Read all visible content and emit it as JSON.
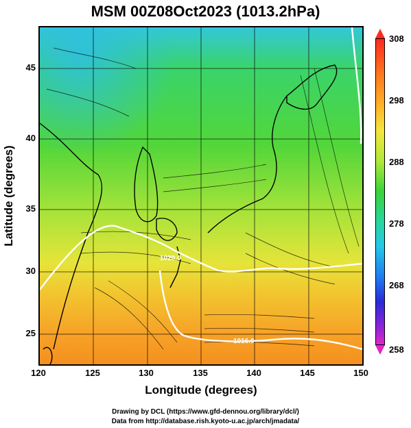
{
  "title": "MSM 00Z08Oct2023 (1013.2hPa)",
  "axes": {
    "xlabel": "Longitude (degrees)",
    "ylabel": "Latitude  (degrees)",
    "xticks": [
      "120",
      "125",
      "130",
      "135",
      "140",
      "145",
      "150"
    ],
    "yticks": [
      "45",
      "40",
      "35",
      "30",
      "25"
    ]
  },
  "colorbar": {
    "ticks": [
      "308",
      "298",
      "288",
      "278",
      "268",
      "258"
    ]
  },
  "contour_labels": [
    "1020.0",
    "1016.0"
  ],
  "credits": {
    "line1": "Drawing by DCL (https://www.gfd-dennou.org/library/dcl/)",
    "line2": "Data from http://database.rish.kyoto-u.ac.jp/arch/jmadata/"
  },
  "colors": {
    "land_border": "#000000",
    "isobar": "#ffffff",
    "warm": "#ff8a1e",
    "cool": "#22c8e8"
  }
}
